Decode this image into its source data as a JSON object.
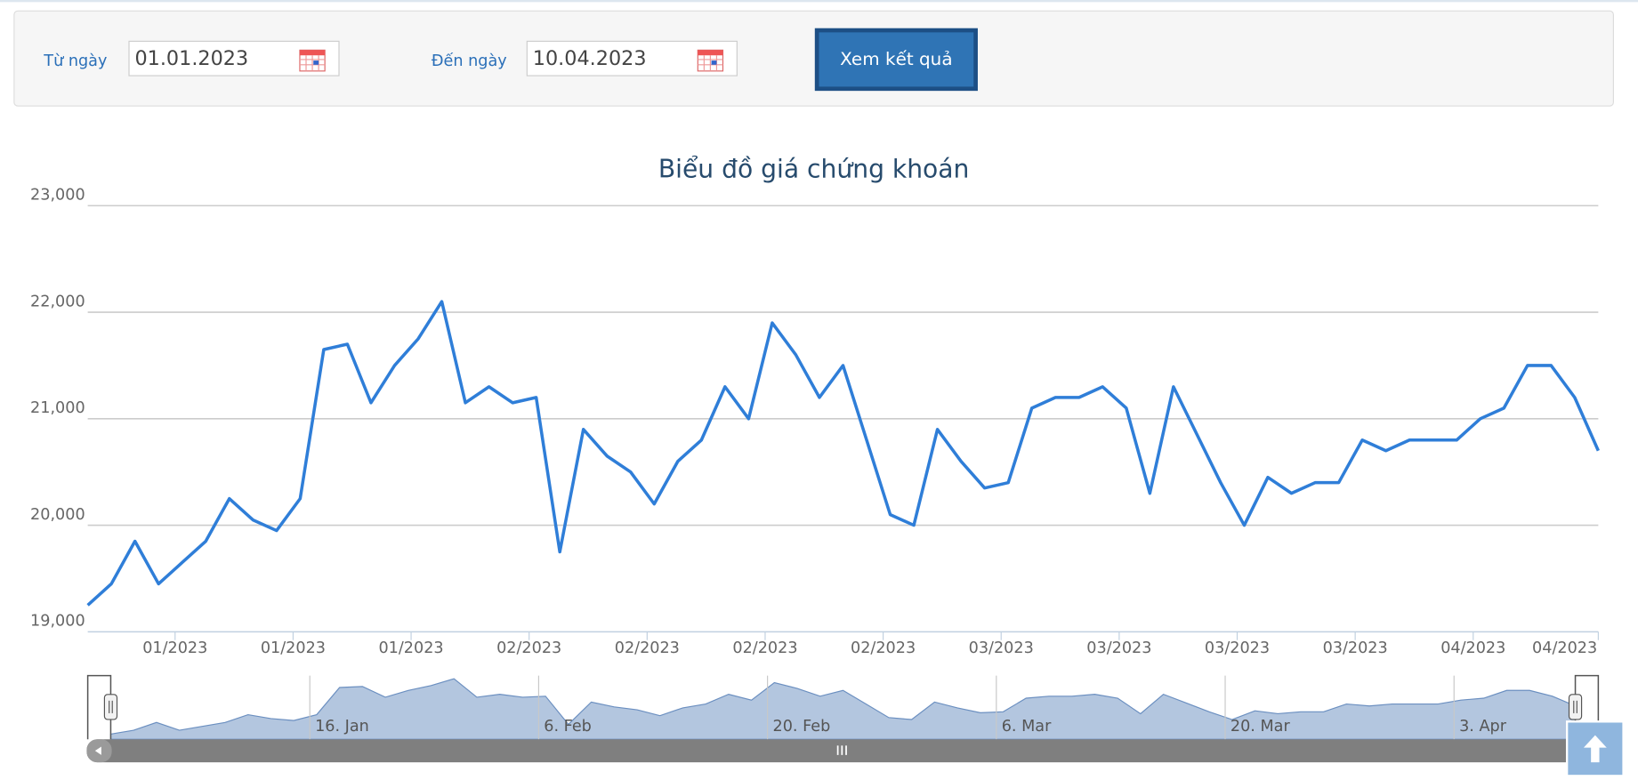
{
  "form": {
    "from_label": "Từ ngày",
    "from_value": "01.01.2023",
    "to_label": "Đến ngày",
    "to_value": "10.04.2023",
    "submit": "Xem kết quả"
  },
  "chart_data": {
    "type": "line",
    "title": "Biểu đồ giá chứng khoán",
    "color": "#2f7ed8",
    "grid": true,
    "values": [
      19250,
      19450,
      19850,
      19450,
      19650,
      19850,
      20250,
      20050,
      19950,
      20250,
      21650,
      21700,
      21150,
      21500,
      21750,
      22100,
      21150,
      21300,
      21150,
      21200,
      19750,
      20900,
      20650,
      20500,
      20200,
      20600,
      20800,
      21300,
      21000,
      21900,
      21600,
      21200,
      21500,
      20800,
      20100,
      20000,
      20900,
      20600,
      20350,
      20400,
      21100,
      21200,
      21200,
      21300,
      21100,
      20300,
      21300,
      20850,
      20400,
      20000,
      20450,
      20300,
      20400,
      20400,
      20800,
      20700,
      20800,
      20800,
      20800,
      21000,
      21100,
      21500,
      21500,
      21200,
      20700
    ],
    "ylim": [
      19000,
      23000
    ],
    "yticks": [
      {
        "value": 19000,
        "label": "19,000"
      },
      {
        "value": 20000,
        "label": "20,000"
      },
      {
        "value": 21000,
        "label": "21,000"
      },
      {
        "value": 22000,
        "label": "22,000"
      },
      {
        "value": 23000,
        "label": "23,000"
      }
    ],
    "xlim": [
      0,
      64
    ],
    "xticks": [
      {
        "value": 3.7,
        "label": "01/2023"
      },
      {
        "value": 8.7,
        "label": "01/2023"
      },
      {
        "value": 13.7,
        "label": "01/2023"
      },
      {
        "value": 18.7,
        "label": "02/2023"
      },
      {
        "value": 23.7,
        "label": "02/2023"
      },
      {
        "value": 28.7,
        "label": "02/2023"
      },
      {
        "value": 33.7,
        "label": "02/2023"
      },
      {
        "value": 38.7,
        "label": "03/2023"
      },
      {
        "value": 43.7,
        "label": "03/2023"
      },
      {
        "value": 48.7,
        "label": "03/2023"
      },
      {
        "value": 53.7,
        "label": "03/2023"
      },
      {
        "value": 58.7,
        "label": "04/2023"
      },
      {
        "value": 64,
        "label": "04/2023"
      }
    ],
    "navigator_xticks": [
      {
        "value": 8.7,
        "label": "16. Jan"
      },
      {
        "value": 18.7,
        "label": "6. Feb"
      },
      {
        "value": 28.7,
        "label": "20. Feb"
      },
      {
        "value": 38.7,
        "label": "6. Mar"
      },
      {
        "value": 48.7,
        "label": "20. Mar"
      },
      {
        "value": 58.7,
        "label": "3. Apr"
      }
    ]
  }
}
